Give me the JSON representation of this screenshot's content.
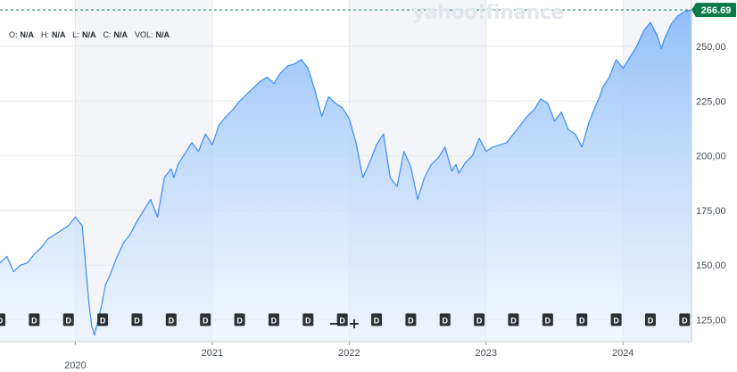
{
  "watermark": "yahoo!finance",
  "ohlc": {
    "open_label": "O:",
    "open_value": "N/A",
    "high_label": "H:",
    "high_value": "N/A",
    "low_label": "L:",
    "low_value": "N/A",
    "close_label": "C:",
    "close_value": "N/A",
    "vol_label": "VOL:",
    "vol_value": "N/A"
  },
  "zoom": {
    "minus_label": "−",
    "plus_label": "+"
  },
  "colors": {
    "line": "#3e8cf5",
    "area_top": "#8cbcf8",
    "area_bottom": "#e9f3fe",
    "price_badge": "#0b7a49",
    "dividend_badge": "#2b3035",
    "grid": "#e6e8eb",
    "band": "#f3f5f8"
  },
  "chart_data": {
    "type": "area",
    "current_price": 266.69,
    "current_price_label": "266.69",
    "ylim": [
      115,
      270
    ],
    "y_ticks": [
      125,
      150,
      175,
      200,
      225,
      250
    ],
    "y_tick_labels": [
      "125,00",
      "150,00",
      "175,00",
      "200,00",
      "225,00",
      "250,00"
    ],
    "xlim": [
      2019.45,
      2024.5
    ],
    "x_ticks": [
      2020,
      2021,
      2022,
      2023,
      2024
    ],
    "x_tick_labels": [
      "2020",
      "2021",
      "2022",
      "2023",
      "2024"
    ],
    "grid": true,
    "dividend_marker_label": "D",
    "dividends": [
      2019.45,
      2019.7,
      2019.95,
      2020.2,
      2020.45,
      2020.7,
      2020.95,
      2021.2,
      2021.45,
      2021.7,
      2021.95,
      2022.2,
      2022.45,
      2022.7,
      2022.95,
      2023.2,
      2023.45,
      2023.7,
      2023.95,
      2024.2,
      2024.45
    ],
    "x": [
      2019.45,
      2019.5,
      2019.55,
      2019.6,
      2019.65,
      2019.7,
      2019.75,
      2019.8,
      2019.85,
      2019.9,
      2019.95,
      2020.0,
      2020.05,
      2020.1,
      2020.12,
      2020.14,
      2020.17,
      2020.19,
      2020.22,
      2020.25,
      2020.3,
      2020.35,
      2020.4,
      2020.45,
      2020.5,
      2020.55,
      2020.6,
      2020.65,
      2020.7,
      2020.72,
      2020.75,
      2020.8,
      2020.85,
      2020.9,
      2020.95,
      2021.0,
      2021.05,
      2021.1,
      2021.15,
      2021.2,
      2021.25,
      2021.3,
      2021.35,
      2021.4,
      2021.45,
      2021.5,
      2021.55,
      2021.6,
      2021.65,
      2021.7,
      2021.75,
      2021.8,
      2021.85,
      2021.9,
      2021.95,
      2022.0,
      2022.05,
      2022.1,
      2022.15,
      2022.2,
      2022.25,
      2022.3,
      2022.35,
      2022.4,
      2022.45,
      2022.5,
      2022.55,
      2022.6,
      2022.65,
      2022.7,
      2022.75,
      2022.78,
      2022.8,
      2022.85,
      2022.9,
      2022.95,
      2023.0,
      2023.05,
      2023.1,
      2023.15,
      2023.2,
      2023.25,
      2023.3,
      2023.35,
      2023.4,
      2023.45,
      2023.5,
      2023.55,
      2023.6,
      2023.65,
      2023.7,
      2023.75,
      2023.8,
      2023.83,
      2023.85,
      2023.9,
      2023.95,
      2024.0,
      2024.05,
      2024.1,
      2024.15,
      2024.2,
      2024.25,
      2024.28,
      2024.3,
      2024.35,
      2024.4,
      2024.45,
      2024.5
    ],
    "values": [
      151,
      154,
      147,
      150,
      151,
      155,
      158,
      162,
      164,
      166,
      168,
      172,
      168,
      132,
      122,
      118,
      126,
      131,
      141,
      145,
      153,
      160,
      164,
      170,
      175,
      180,
      172,
      190,
      194,
      190,
      196,
      201,
      206,
      202,
      210,
      205,
      214,
      218,
      221,
      225,
      228,
      231,
      234,
      236,
      233,
      238,
      241,
      242,
      244,
      240,
      230,
      218,
      227,
      224,
      222,
      217,
      206,
      190,
      197,
      205,
      210,
      190,
      186,
      202,
      195,
      180,
      190,
      196,
      199,
      204,
      193,
      196,
      192,
      197,
      200,
      208,
      202,
      204,
      205,
      206,
      210,
      214,
      218,
      221,
      226,
      224,
      216,
      220,
      212,
      210,
      204,
      215,
      223,
      227,
      231,
      236,
      244,
      240,
      245,
      250,
      257,
      261,
      255,
      249,
      253,
      260,
      264,
      266,
      266.69
    ]
  }
}
